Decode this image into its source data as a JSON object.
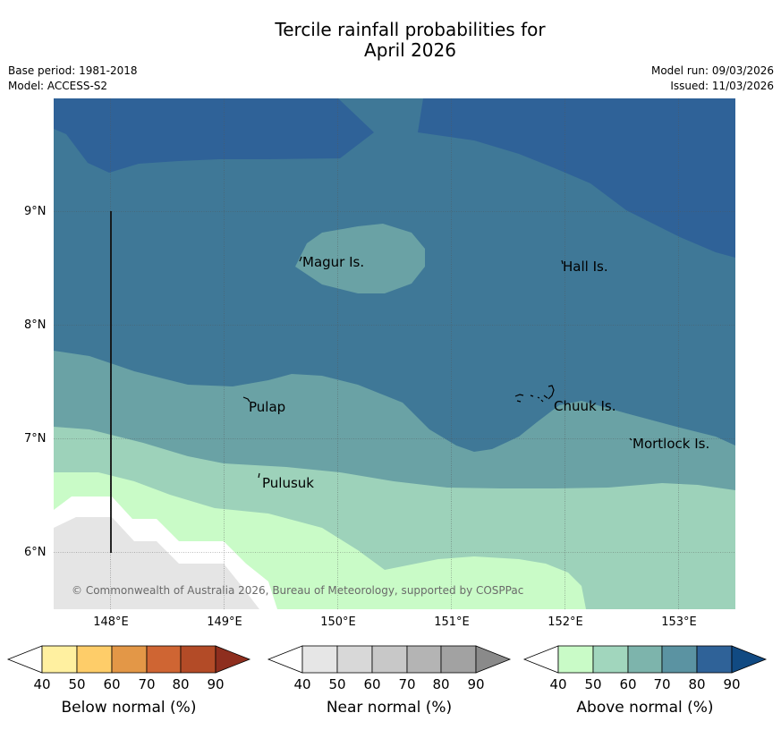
{
  "title_line1": "Tercile rainfall probabilities for",
  "title_line2": "April 2026",
  "meta": {
    "base_period": "Base period: 1981-2018",
    "model": "Model: ACCESS-S2",
    "model_run": "Model run: 09/03/2026",
    "issued": "Issued: 11/03/2026"
  },
  "map": {
    "y_ticks": [
      "9°N",
      "8°N",
      "7°N",
      "6°N"
    ],
    "x_ticks": [
      "148°E",
      "149°E",
      "150°E",
      "151°E",
      "152°E",
      "153°E"
    ],
    "places": [
      "Magur Is.",
      "Hall Is.",
      "Pulap",
      "Chuuk Is.",
      "Mortlock Is.",
      "Pulusuk"
    ],
    "copyright": "© Commonwealth of Australia 2026, Bureau of Meteorology, supported by COSPPac",
    "colors": {
      "above_80_90": "#2f6298",
      "above_70_80": "#3f7897",
      "above_60_70": "#6aa2a5",
      "above_50_60": "#9dd2ba",
      "above_40_50": "#c9fbc7",
      "near_normal": "#e5e5e5"
    }
  },
  "legends": [
    {
      "title": "Below normal (%)",
      "ticks": [
        "40",
        "50",
        "60",
        "70",
        "80",
        "90"
      ],
      "colors": [
        "#fff0a0",
        "#fecd69",
        "#e39747",
        "#cf6533",
        "#b34b27",
        "#8e2e1e"
      ]
    },
    {
      "title": "Near normal (%)",
      "ticks": [
        "40",
        "50",
        "60",
        "70",
        "80",
        "90"
      ],
      "colors": [
        "#e6e6e6",
        "#d8d8d8",
        "#c8c8c8",
        "#b4b4b4",
        "#a2a2a2",
        "#8a8a8a"
      ]
    },
    {
      "title": "Above normal (%)",
      "ticks": [
        "40",
        "50",
        "60",
        "70",
        "80",
        "90"
      ],
      "colors": [
        "#c9fbc7",
        "#a1d6bd",
        "#7db4ac",
        "#5b93a2",
        "#2f6298",
        "#114a82"
      ]
    }
  ]
}
